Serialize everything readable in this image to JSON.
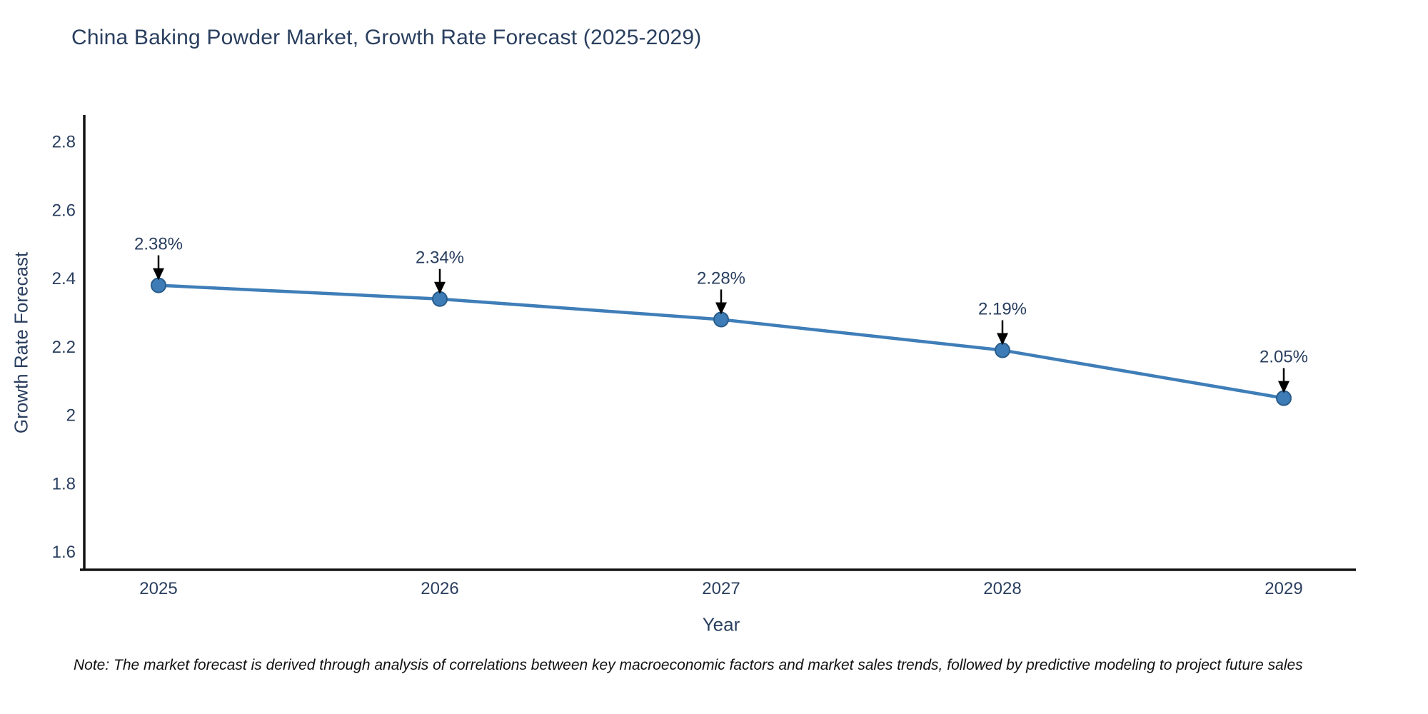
{
  "chart_data": {
    "type": "line",
    "title": "China Baking Powder Market, Growth Rate Forecast (2025-2029)",
    "xlabel": "Year",
    "ylabel": "Growth Rate Forecast",
    "categories": [
      "2025",
      "2026",
      "2027",
      "2028",
      "2029"
    ],
    "series": [
      {
        "name": "Growth Rate Forecast",
        "values": [
          2.38,
          2.34,
          2.28,
          2.19,
          2.05
        ],
        "point_labels": [
          "2.38%",
          "2.34%",
          "2.28%",
          "2.19%",
          "2.05%"
        ]
      }
    ],
    "yticks": [
      2.8,
      2.6,
      2.4,
      2.2,
      2,
      1.8,
      1.6
    ],
    "ylim": [
      1.55,
      2.88
    ],
    "grid": false,
    "legend": false,
    "annotations_style": "value label with down arrow to each point"
  },
  "colors": {
    "line": "#3f7eb8",
    "marker_fill": "#3d7cb6",
    "marker_edge": "#2a5d8a",
    "axis": "#121212",
    "text": "#2a3f5f",
    "annotation_arrow": "#000000",
    "note_text": "#111111",
    "background": "#ffffff"
  },
  "note": "Note: The market forecast is derived through analysis of correlations between key macroeconomic factors and market sales trends, followed by predictive modeling to project future sales"
}
